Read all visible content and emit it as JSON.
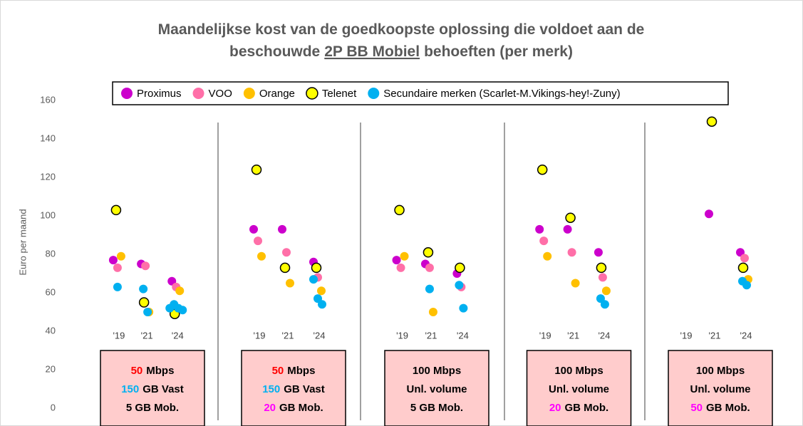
{
  "chart_data": {
    "type": "scatter",
    "title_lines": [
      [
        "Maandelijkse kost van de goedkoopste oplossing die voldoet aan de"
      ],
      [
        "beschouwde",
        "2P BB Mobiel",
        "behoeften (per merk)"
      ]
    ],
    "title_underline": [
      1,
      1
    ],
    "ylabel": "Euro per maand",
    "ylim": [
      0,
      160
    ],
    "yticks": [
      0,
      20,
      40,
      60,
      80,
      100,
      120,
      140,
      160
    ],
    "panels": [
      {
        "categories": [
          "'19",
          "'21",
          "'24"
        ],
        "box": [
          {
            "highlight": "50",
            "color": "#ff0000",
            "rest": "Mbps"
          },
          {
            "highlight": "150",
            "color": "#00b0f0",
            "rest": "GB Vast"
          },
          {
            "rest": "5 GB Mob."
          }
        ]
      },
      {
        "categories": [
          "'19",
          "'21",
          "'24"
        ],
        "box": [
          {
            "highlight": "50",
            "color": "#ff0000",
            "rest": "Mbps"
          },
          {
            "highlight": "150",
            "color": "#00b0f0",
            "rest": "GB Vast"
          },
          {
            "highlight": "20",
            "color": "#ff00ff",
            "rest": "GB Mob."
          }
        ]
      },
      {
        "categories": [
          "'19",
          "'21",
          "'24"
        ],
        "box": [
          {
            "rest": "100 Mbps"
          },
          {
            "rest": "Unl. volume"
          },
          {
            "rest": "5 GB Mob."
          }
        ]
      },
      {
        "categories": [
          "'19",
          "'21",
          "'24"
        ],
        "box": [
          {
            "rest": "100 Mbps"
          },
          {
            "rest": "Unl. volume"
          },
          {
            "highlight": "20",
            "color": "#ff00ff",
            "rest": "GB Mob."
          }
        ]
      },
      {
        "categories": [
          "'19",
          "'21",
          "'24"
        ],
        "box": [
          {
            "rest": "100 Mbps"
          },
          {
            "rest": "Unl. volume"
          },
          {
            "highlight": "50",
            "color": "#ff00ff",
            "rest": "GB Mob."
          }
        ]
      }
    ],
    "series": [
      {
        "name": "Proximus",
        "color": "#cc00cc",
        "values": [
          [
            [
              77
            ],
            [
              75
            ],
            [
              66
            ]
          ],
          [
            [
              93
            ],
            [
              93
            ],
            [
              76
            ]
          ],
          [
            [
              77
            ],
            [
              75
            ],
            [
              70
            ]
          ],
          [
            [
              93
            ],
            [
              93
            ],
            [
              81
            ]
          ],
          [
            null,
            [
              101
            ],
            [
              81
            ]
          ]
        ]
      },
      {
        "name": "VOO",
        "color": "#ff6fa8",
        "values": [
          [
            [
              73
            ],
            [
              74
            ],
            [
              63
            ]
          ],
          [
            [
              87
            ],
            [
              81
            ],
            [
              68
            ]
          ],
          [
            [
              73
            ],
            [
              73
            ],
            [
              63
            ]
          ],
          [
            [
              87
            ],
            [
              81
            ],
            [
              68
            ]
          ],
          [
            null,
            null,
            [
              78
            ]
          ]
        ]
      },
      {
        "name": "Orange",
        "color": "#ffc000",
        "values": [
          [
            [
              79
            ],
            [
              50
            ],
            [
              61
            ]
          ],
          [
            [
              79
            ],
            [
              65
            ],
            [
              61
            ]
          ],
          [
            [
              79
            ],
            [
              50
            ],
            null
          ],
          [
            [
              79
            ],
            [
              65
            ],
            [
              61
            ]
          ],
          [
            null,
            null,
            [
              67
            ]
          ]
        ]
      },
      {
        "name": "Telenet",
        "color": "#ffff00",
        "stroke": "#000000",
        "values": [
          [
            [
              103
            ],
            [
              55
            ],
            [
              49
            ]
          ],
          [
            [
              124
            ],
            [
              73
            ],
            [
              73
            ]
          ],
          [
            [
              103
            ],
            [
              81
            ],
            [
              73
            ]
          ],
          [
            [
              124
            ],
            [
              99
            ],
            [
              73
            ]
          ],
          [
            null,
            [
              149
            ],
            [
              73
            ]
          ]
        ]
      },
      {
        "name": "Secundaire merken (Scarlet-M.Vikings-hey!-Zuny)",
        "color": "#00b0f0",
        "values": [
          [
            [
              63
            ],
            [
              62,
              50
            ],
            [
              52,
              54,
              52,
              51
            ]
          ],
          [
            null,
            null,
            [
              67,
              57,
              54
            ]
          ],
          [
            null,
            [
              62
            ],
            [
              64,
              52
            ]
          ],
          [
            null,
            null,
            [
              57,
              54
            ]
          ],
          [
            null,
            null,
            [
              66,
              64
            ]
          ]
        ]
      }
    ]
  }
}
